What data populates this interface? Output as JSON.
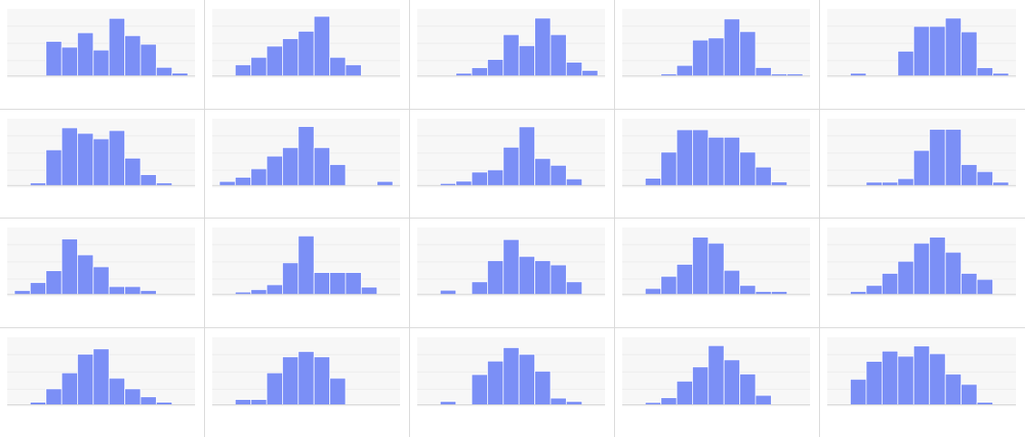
{
  "colors": {
    "bar": "#7b8ff6",
    "plot_background": "#f7f7f7",
    "gridline": "#ececec",
    "cell_border": "#d9d9d9"
  },
  "chart_data": [
    {
      "type": "bar",
      "bins": 10,
      "values": [
        0,
        0,
        12,
        10,
        15,
        9,
        20,
        14,
        11,
        3,
        1
      ],
      "ylim": [
        0,
        22
      ]
    },
    {
      "type": "bar",
      "bins": 10,
      "values": [
        0,
        3,
        5,
        8,
        10,
        12,
        16,
        5,
        3,
        0,
        0
      ],
      "ylim": [
        0,
        17
      ]
    },
    {
      "type": "bar",
      "bins": 10,
      "values": [
        0,
        0,
        1,
        3,
        6,
        15,
        11,
        21,
        15,
        5,
        2
      ],
      "ylim": [
        0,
        23
      ]
    },
    {
      "type": "bar",
      "bins": 10,
      "values": [
        0,
        0,
        1,
        5,
        17,
        18,
        27,
        21,
        4,
        1,
        1
      ],
      "ylim": [
        0,
        30
      ]
    },
    {
      "type": "bar",
      "bins": 10,
      "values": [
        0,
        1,
        0,
        0,
        9,
        18,
        18,
        21,
        16,
        3,
        1
      ],
      "ylim": [
        0,
        23
      ]
    },
    {
      "type": "bar",
      "bins": 10,
      "values": [
        0,
        1,
        13,
        21,
        19,
        17,
        20,
        10,
        4,
        1,
        0
      ],
      "ylim": [
        0,
        23
      ]
    },
    {
      "type": "bar",
      "bins": 10,
      "values": [
        1,
        2,
        4,
        7,
        9,
        14,
        9,
        5,
        0,
        0,
        1
      ],
      "ylim": [
        0,
        15
      ]
    },
    {
      "type": "bar",
      "bins": 10,
      "values": [
        0,
        1,
        2,
        6,
        7,
        17,
        26,
        12,
        9,
        3,
        0
      ],
      "ylim": [
        0,
        28
      ]
    },
    {
      "type": "bar",
      "bins": 10,
      "values": [
        0,
        2,
        9,
        15,
        15,
        13,
        13,
        9,
        5,
        1,
        0
      ],
      "ylim": [
        0,
        17
      ]
    },
    {
      "type": "bar",
      "bins": 10,
      "values": [
        0,
        0,
        1,
        1,
        2,
        10,
        16,
        16,
        6,
        4,
        1
      ],
      "ylim": [
        0,
        18
      ]
    },
    {
      "type": "bar",
      "bins": 10,
      "values": [
        1,
        3,
        6,
        14,
        10,
        7,
        2,
        2,
        1,
        0,
        0
      ],
      "ylim": [
        0,
        16
      ]
    },
    {
      "type": "bar",
      "bins": 10,
      "values": [
        0,
        1,
        2,
        4,
        13,
        24,
        9,
        9,
        9,
        3,
        0
      ],
      "ylim": [
        0,
        26
      ]
    },
    {
      "type": "bar",
      "bins": 10,
      "values": [
        0,
        1,
        0,
        3,
        8,
        13,
        9,
        8,
        7,
        3,
        0
      ],
      "ylim": [
        0,
        15
      ]
    },
    {
      "type": "bar",
      "bins": 10,
      "values": [
        0,
        2,
        6,
        10,
        19,
        17,
        8,
        3,
        1,
        1,
        0
      ],
      "ylim": [
        0,
        21
      ]
    },
    {
      "type": "bar",
      "bins": 10,
      "values": [
        0,
        1,
        3,
        7,
        11,
        17,
        19,
        14,
        7,
        5,
        0
      ],
      "ylim": [
        0,
        21
      ]
    },
    {
      "type": "bar",
      "bins": 10,
      "values": [
        0,
        1,
        6,
        12,
        19,
        21,
        10,
        6,
        3,
        1,
        0
      ],
      "ylim": [
        0,
        24
      ]
    },
    {
      "type": "bar",
      "bins": 10,
      "values": [
        0,
        1,
        1,
        6,
        9,
        10,
        9,
        5,
        0,
        0,
        0
      ],
      "ylim": [
        0,
        12
      ]
    },
    {
      "type": "bar",
      "bins": 10,
      "values": [
        0,
        1,
        0,
        9,
        13,
        17,
        15,
        10,
        2,
        1,
        0
      ],
      "ylim": [
        0,
        19
      ]
    },
    {
      "type": "bar",
      "bins": 10,
      "values": [
        0,
        1,
        3,
        10,
        16,
        25,
        19,
        13,
        4,
        0,
        0
      ],
      "ylim": [
        0,
        27
      ]
    },
    {
      "type": "bar",
      "bins": 10,
      "values": [
        0,
        10,
        17,
        21,
        19,
        23,
        20,
        12,
        8,
        1,
        0
      ],
      "ylim": [
        0,
        25
      ]
    }
  ]
}
